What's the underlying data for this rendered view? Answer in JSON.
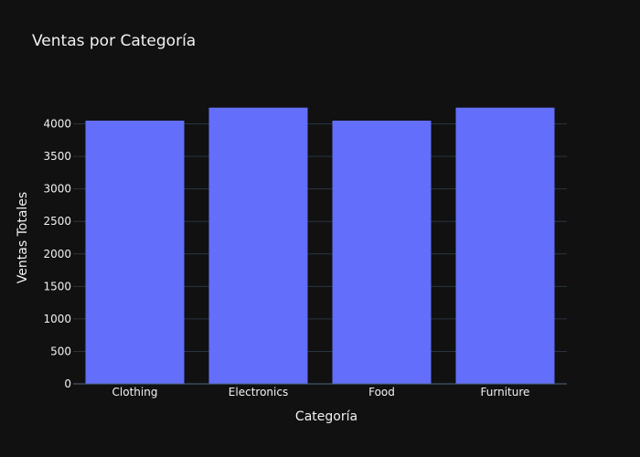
{
  "chart_data": {
    "type": "bar",
    "title": "Ventas por Categoría",
    "xlabel": "Categoría",
    "ylabel": "Ventas Totales",
    "categories": [
      "Clothing",
      "Electronics",
      "Food",
      "Furniture"
    ],
    "values": [
      4050,
      4250,
      4050,
      4250
    ],
    "ylim": [
      0,
      4500
    ],
    "yticks": [
      0,
      500,
      1000,
      1500,
      2000,
      2500,
      3000,
      3500,
      4000
    ],
    "grid": true,
    "colors": {
      "background": "#111111",
      "bar": "#636efa",
      "grid": "#283442",
      "text": "#f2f2f2"
    }
  }
}
